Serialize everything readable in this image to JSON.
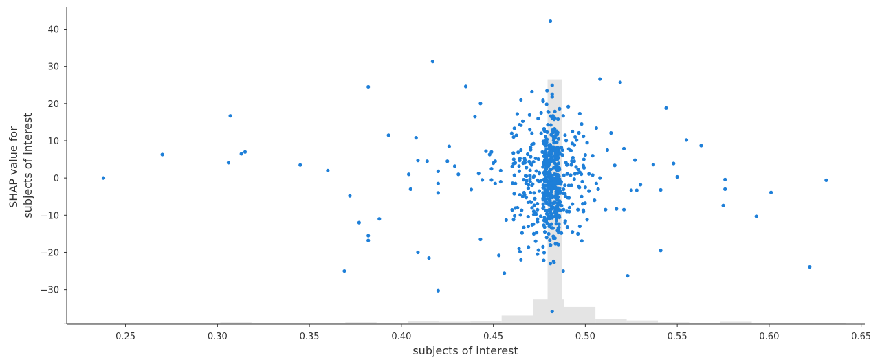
{
  "chart_data": {
    "type": "scatter",
    "xlabel": "subjects of interest",
    "ylabel": [
      "SHAP value for",
      "subjects of interest"
    ],
    "xlim": [
      0.218,
      0.652
    ],
    "ylim": [
      -39.3,
      46.0
    ],
    "x_ticks": [
      0.25,
      0.3,
      0.35,
      0.4,
      0.45,
      0.5,
      0.55,
      0.6,
      0.65
    ],
    "x_tick_labels": [
      "0.25",
      "0.30",
      "0.35",
      "0.40",
      "0.45",
      "0.50",
      "0.55",
      "0.60",
      "0.65"
    ],
    "y_ticks": [
      40,
      30,
      20,
      10,
      0,
      -10,
      -20,
      -30
    ],
    "y_tick_labels": [
      "40",
      "30",
      "20",
      "10",
      "0",
      "−10",
      "−20",
      "−30"
    ],
    "grid": false,
    "point_color": "#1e7fd8",
    "histogram_color": "#e4e4e4",
    "histogram": {
      "bins": [
        [
          0.2165,
          0.2335,
          1
        ],
        [
          0.2335,
          0.2505,
          1
        ],
        [
          0.2505,
          0.2675,
          1
        ],
        [
          0.2675,
          0.2845,
          1
        ],
        [
          0.2845,
          0.3015,
          1
        ],
        [
          0.3015,
          0.3185,
          3
        ],
        [
          0.3185,
          0.3355,
          1
        ],
        [
          0.3355,
          0.3525,
          1
        ],
        [
          0.3525,
          0.3695,
          1
        ],
        [
          0.3695,
          0.3865,
          3
        ],
        [
          0.3865,
          0.4035,
          1
        ],
        [
          0.4035,
          0.4205,
          5
        ],
        [
          0.4205,
          0.4375,
          4
        ],
        [
          0.4375,
          0.4545,
          5
        ],
        [
          0.4545,
          0.4715,
          14
        ],
        [
          0.4715,
          0.4885,
          40
        ],
        [
          0.4885,
          0.5055,
          28
        ],
        [
          0.5055,
          0.5225,
          8
        ],
        [
          0.5225,
          0.5395,
          6
        ],
        [
          0.5395,
          0.5565,
          3
        ],
        [
          0.5565,
          0.5735,
          2
        ],
        [
          0.5735,
          0.5905,
          4
        ],
        [
          0.5905,
          0.6075,
          1
        ],
        [
          0.6075,
          0.6245,
          1
        ],
        [
          0.6245,
          0.6415,
          1
        ]
      ],
      "tall_bin": [
        0.4795,
        0.4875,
        398
      ]
    },
    "points": [
      [
        0.238,
        0
      ],
      [
        0.27,
        6.3
      ],
      [
        0.306,
        4.1
      ],
      [
        0.307,
        16.7
      ],
      [
        0.313,
        6.5
      ],
      [
        0.315,
        7
      ],
      [
        0.345,
        3.5
      ],
      [
        0.36,
        2
      ],
      [
        0.372,
        -4.8
      ],
      [
        0.377,
        -12
      ],
      [
        0.369,
        -25
      ],
      [
        0.382,
        24.5
      ],
      [
        0.382,
        -15.5
      ],
      [
        0.382,
        -16.8
      ],
      [
        0.388,
        -11
      ],
      [
        0.393,
        11.5
      ],
      [
        0.404,
        1
      ],
      [
        0.405,
        -3
      ],
      [
        0.408,
        10.8
      ],
      [
        0.409,
        4.7
      ],
      [
        0.409,
        -20
      ],
      [
        0.414,
        4.5
      ],
      [
        0.415,
        -21.5
      ],
      [
        0.417,
        31.3
      ],
      [
        0.42,
        -1.5
      ],
      [
        0.42,
        1.8
      ],
      [
        0.42,
        -4
      ],
      [
        0.42,
        -30.3
      ],
      [
        0.425,
        4.5
      ],
      [
        0.426,
        8.5
      ],
      [
        0.429,
        3.2
      ],
      [
        0.431,
        1
      ],
      [
        0.435,
        24.6
      ],
      [
        0.438,
        -3.1
      ],
      [
        0.44,
        16.5
      ],
      [
        0.442,
        1.2
      ],
      [
        0.443,
        20
      ],
      [
        0.443,
        -16.5
      ],
      [
        0.444,
        -0.5
      ],
      [
        0.446,
        7.2
      ],
      [
        0.448,
        6.3
      ],
      [
        0.449,
        7
      ],
      [
        0.449,
        2.5
      ],
      [
        0.449,
        -0.5
      ],
      [
        0.45,
        4
      ],
      [
        0.451,
        4.5
      ],
      [
        0.451,
        -1.5
      ],
      [
        0.453,
        -20.8
      ],
      [
        0.454,
        2
      ],
      [
        0.454,
        -1
      ],
      [
        0.456,
        -25.6
      ],
      [
        0.457,
        -11.3
      ],
      [
        0.46,
        12
      ],
      [
        0.461,
        11
      ],
      [
        0.461,
        -11.2
      ],
      [
        0.462,
        -1.5
      ],
      [
        0.463,
        17.2
      ],
      [
        0.464,
        -19
      ],
      [
        0.464,
        3.2
      ],
      [
        0.465,
        -22
      ],
      [
        0.465,
        21
      ],
      [
        0.465,
        14.2
      ],
      [
        0.465,
        7.5
      ],
      [
        0.466,
        -5
      ],
      [
        0.467,
        -4.5
      ],
      [
        0.468,
        2.8
      ],
      [
        0.468,
        0.5
      ],
      [
        0.469,
        -13
      ],
      [
        0.469,
        -6.5
      ],
      [
        0.47,
        4
      ],
      [
        0.471,
        23.2
      ],
      [
        0.471,
        12
      ],
      [
        0.471,
        9
      ],
      [
        0.471,
        -2
      ],
      [
        0.472,
        -9
      ],
      [
        0.472,
        -15
      ],
      [
        0.473,
        -17
      ],
      [
        0.473,
        5.3
      ],
      [
        0.474,
        -20.5
      ],
      [
        0.474,
        -11.8
      ],
      [
        0.475,
        1.2
      ],
      [
        0.475,
        -3.5
      ],
      [
        0.476,
        12
      ],
      [
        0.476,
        17.5
      ],
      [
        0.477,
        -8.2
      ],
      [
        0.477,
        -5.5
      ],
      [
        0.477,
        3
      ],
      [
        0.478,
        -14.5
      ],
      [
        0.478,
        -1
      ],
      [
        0.478,
        7
      ],
      [
        0.479,
        19.8
      ],
      [
        0.479,
        -16
      ],
      [
        0.479,
        -6.8
      ],
      [
        0.479,
        10.4
      ],
      [
        0.48,
        4.1
      ],
      [
        0.48,
        -2.2
      ],
      [
        0.481,
        42.2
      ],
      [
        0.481,
        -23
      ],
      [
        0.481,
        -18
      ],
      [
        0.482,
        24.9
      ],
      [
        0.482,
        22.5
      ],
      [
        0.482,
        -35.9
      ],
      [
        0.483,
        -22.7
      ],
      [
        0.483,
        9.5
      ],
      [
        0.484,
        -9.7
      ],
      [
        0.484,
        3.2
      ],
      [
        0.485,
        -0.5
      ],
      [
        0.485,
        6.1
      ],
      [
        0.485,
        12.2
      ],
      [
        0.486,
        18.6
      ],
      [
        0.486,
        -6.2
      ],
      [
        0.486,
        -2.8
      ],
      [
        0.487,
        -14.8
      ],
      [
        0.487,
        8.2
      ],
      [
        0.488,
        -25
      ],
      [
        0.488,
        16.7
      ],
      [
        0.489,
        11.5
      ],
      [
        0.489,
        -12
      ],
      [
        0.489,
        -4.3
      ],
      [
        0.49,
        3.5
      ],
      [
        0.49,
        -9
      ],
      [
        0.491,
        7.8
      ],
      [
        0.491,
        -2
      ],
      [
        0.492,
        0.8
      ],
      [
        0.493,
        -14.5
      ],
      [
        0.493,
        -7
      ],
      [
        0.493,
        12.5
      ],
      [
        0.494,
        4.5
      ],
      [
        0.494,
        -0.3
      ],
      [
        0.495,
        3
      ],
      [
        0.496,
        -15
      ],
      [
        0.496,
        -8.5
      ],
      [
        0.497,
        -13
      ],
      [
        0.497,
        17.3
      ],
      [
        0.498,
        14.5
      ],
      [
        0.498,
        -5
      ],
      [
        0.499,
        -9
      ],
      [
        0.499,
        11.2
      ],
      [
        0.5,
        6.2
      ],
      [
        0.5,
        -2.5
      ],
      [
        0.501,
        9.5
      ],
      [
        0.501,
        -11.2
      ],
      [
        0.502,
        1.1
      ],
      [
        0.502,
        -3.5
      ],
      [
        0.504,
        0.8
      ],
      [
        0.504,
        6
      ],
      [
        0.505,
        -6
      ],
      [
        0.506,
        13.4
      ],
      [
        0.506,
        -1.5
      ],
      [
        0.507,
        -3
      ],
      [
        0.508,
        0
      ],
      [
        0.508,
        26.6
      ],
      [
        0.511,
        -8.5
      ],
      [
        0.512,
        7.5
      ],
      [
        0.514,
        12.1
      ],
      [
        0.516,
        3.4
      ],
      [
        0.517,
        -8.3
      ],
      [
        0.519,
        25.7
      ],
      [
        0.521,
        -8.5
      ],
      [
        0.521,
        7.9
      ],
      [
        0.523,
        -26.3
      ],
      [
        0.525,
        -3.3
      ],
      [
        0.527,
        4.8
      ],
      [
        0.528,
        -3.3
      ],
      [
        0.53,
        -1.8
      ],
      [
        0.537,
        3.6
      ],
      [
        0.541,
        -3.2
      ],
      [
        0.541,
        -19.5
      ],
      [
        0.544,
        18.8
      ],
      [
        0.548,
        3.9
      ],
      [
        0.55,
        0.3
      ],
      [
        0.555,
        10.2
      ],
      [
        0.563,
        8.7
      ],
      [
        0.575,
        -7.4
      ],
      [
        0.576,
        -0.4
      ],
      [
        0.576,
        -3
      ],
      [
        0.593,
        -10.3
      ],
      [
        0.601,
        -3.9
      ],
      [
        0.622,
        -23.9
      ],
      [
        0.631,
        -0.6
      ]
    ],
    "clusters": [
      {
        "center": 0.4815,
        "spread": 0.0045,
        "count": 340,
        "seed": 11,
        "sigma": 8.0
      },
      {
        "center": 0.48,
        "spread": 0.02,
        "count": 170,
        "seed": 29,
        "sigma": 7.5
      }
    ]
  }
}
